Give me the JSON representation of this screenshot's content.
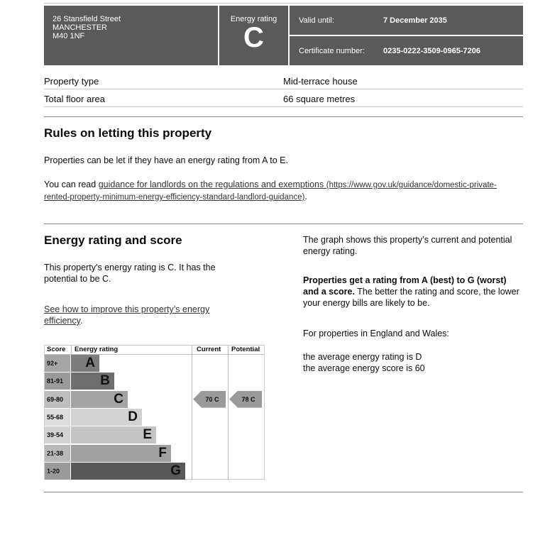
{
  "header": {
    "address": [
      "26 Stansfield Street",
      "MANCHESTER",
      "M40 1NF"
    ],
    "energy_rating_label": "Energy rating",
    "energy_rating": "C",
    "valid_until_label": "Valid until:",
    "valid_until": "7 December 2035",
    "certificate_label": "Certificate number:",
    "certificate_number": "0235-0222-3509-0965-7206"
  },
  "property": [
    {
      "label": "Property type",
      "value": "Mid-terrace house"
    },
    {
      "label": "Total floor area",
      "value": "66 square metres"
    }
  ],
  "letting": {
    "title": "Rules on letting this property",
    "text": "Properties can be let if they have an energy rating from A to E.",
    "read_prefix": "You can read ",
    "link_text": "guidance for landlords on the regulations and exemptions",
    "link_url_text": "(https://www.gov.uk/guidance/domestic-private-rented-property-minimum-energy-efficiency-standard-landlord-guidance)",
    "suffix": "."
  },
  "energy": {
    "title": "Energy rating and score",
    "text": "This property’s energy rating is C. It has the potential to be C.",
    "link_text": "See how to improve this property’s energy efficiency",
    "suffix": ".",
    "graph_text": "The graph shows this property’s current and potential energy rating.",
    "bold_text": "Properties get a rating from A (best) to G (worst) and a score.",
    "after_bold": " The better the rating and score, the lower your energy bills are likely to be.",
    "england_wales": "For properties in England and Wales:",
    "avg_rating": "the average energy rating is D",
    "avg_score": "the average energy score is 60"
  },
  "chart_data": {
    "type": "table",
    "headers": [
      "Score",
      "Energy rating",
      "Current",
      "Potential"
    ],
    "bands": [
      {
        "score": "92+",
        "letter": "A",
        "color": "#7d7d7d",
        "score_color": "#a5a5a5"
      },
      {
        "score": "81-91",
        "letter": "B",
        "color": "#6e6e6e",
        "score_color": "#9a9a9a"
      },
      {
        "score": "69-80",
        "letter": "C",
        "color": "#a3a3a3",
        "score_color": "#bdbdbd"
      },
      {
        "score": "55-68",
        "letter": "D",
        "color": "#d2d2d2",
        "score_color": "#dcdcdc"
      },
      {
        "score": "39-54",
        "letter": "E",
        "color": "#c3c3c3",
        "score_color": "#d2d2d2"
      },
      {
        "score": "21-38",
        "letter": "F",
        "color": "#a0a0a0",
        "score_color": "#b8b8b8"
      },
      {
        "score": "1-20",
        "letter": "G",
        "color": "#585858",
        "score_color": "#9a9a9a"
      }
    ],
    "current": {
      "score": 70,
      "band": "C",
      "label": "70  C"
    },
    "potential": {
      "score": 78,
      "band": "C",
      "label": "78  C"
    }
  }
}
